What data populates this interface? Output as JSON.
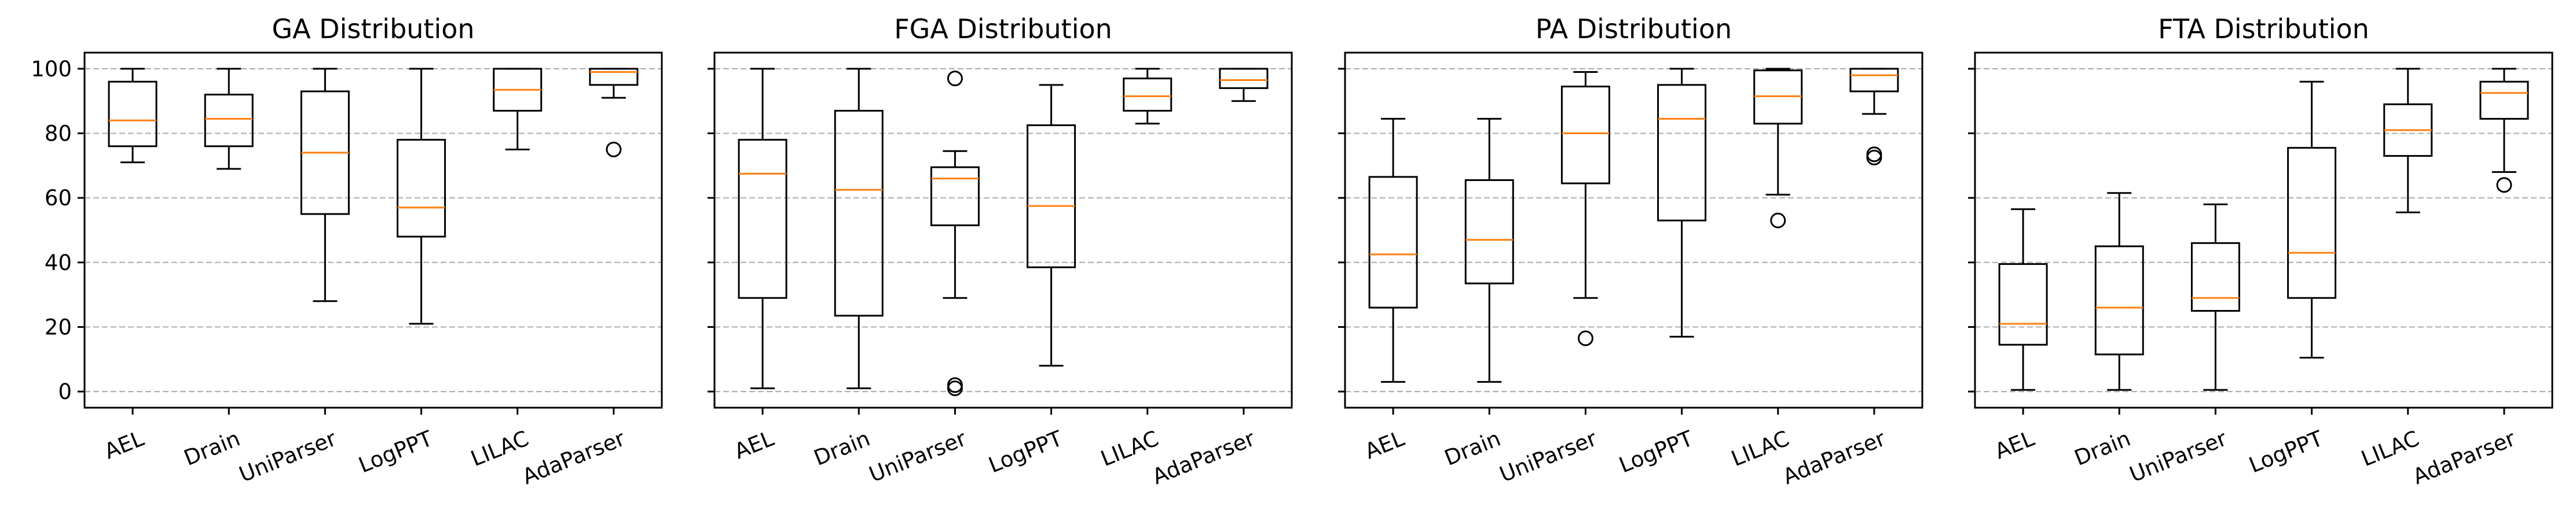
{
  "chart_data": {
    "type": "boxplot",
    "y_ticks": [
      0,
      20,
      40,
      60,
      80,
      100
    ],
    "ylim": [
      -5,
      105
    ],
    "grid": "horizontal dashed",
    "colors": {
      "median": "#ff7f0e",
      "box": "#000000",
      "grid": "#b0b0b0"
    },
    "categories": [
      "AEL",
      "Drain",
      "UniParser",
      "LogPPT",
      "LILAC",
      "AdaParser"
    ],
    "panels": [
      {
        "title": "GA Distribution",
        "boxes": [
          {
            "name": "AEL",
            "whislo": 71,
            "q1": 76,
            "med": 84,
            "q3": 96,
            "whishi": 100,
            "fliers": []
          },
          {
            "name": "Drain",
            "whislo": 69,
            "q1": 76,
            "med": 84.5,
            "q3": 92,
            "whishi": 100,
            "fliers": []
          },
          {
            "name": "UniParser",
            "whislo": 28,
            "q1": 55,
            "med": 74,
            "q3": 93,
            "whishi": 100,
            "fliers": []
          },
          {
            "name": "LogPPT",
            "whislo": 21,
            "q1": 48,
            "med": 57,
            "q3": 78,
            "whishi": 100,
            "fliers": []
          },
          {
            "name": "LILAC",
            "whislo": 75,
            "q1": 87,
            "med": 93.5,
            "q3": 100,
            "whishi": 100,
            "fliers": []
          },
          {
            "name": "AdaParser",
            "whislo": 91,
            "q1": 95,
            "med": 99,
            "q3": 100,
            "whishi": 100,
            "fliers": [
              75
            ]
          }
        ]
      },
      {
        "title": "FGA Distribution",
        "boxes": [
          {
            "name": "AEL",
            "whislo": 1,
            "q1": 29,
            "med": 67.5,
            "q3": 78,
            "whishi": 100,
            "fliers": []
          },
          {
            "name": "Drain",
            "whislo": 1,
            "q1": 23.5,
            "med": 62.5,
            "q3": 87,
            "whishi": 100,
            "fliers": []
          },
          {
            "name": "UniParser",
            "whislo": 29,
            "q1": 51.5,
            "med": 66,
            "q3": 69.5,
            "whishi": 74.5,
            "fliers": [
              97,
              2,
              1
            ]
          },
          {
            "name": "LogPPT",
            "whislo": 8,
            "q1": 38.5,
            "med": 57.5,
            "q3": 82.5,
            "whishi": 95,
            "fliers": []
          },
          {
            "name": "LILAC",
            "whislo": 83,
            "q1": 87,
            "med": 91.5,
            "q3": 97,
            "whishi": 100,
            "fliers": []
          },
          {
            "name": "AdaParser",
            "whislo": 90,
            "q1": 94,
            "med": 96.5,
            "q3": 100,
            "whishi": 100,
            "fliers": []
          }
        ]
      },
      {
        "title": "PA Distribution",
        "boxes": [
          {
            "name": "AEL",
            "whislo": 3,
            "q1": 26,
            "med": 42.5,
            "q3": 66.5,
            "whishi": 84.5,
            "fliers": []
          },
          {
            "name": "Drain",
            "whislo": 3,
            "q1": 33.5,
            "med": 47,
            "q3": 65.5,
            "whishi": 84.5,
            "fliers": []
          },
          {
            "name": "UniParser",
            "whislo": 29,
            "q1": 64.5,
            "med": 80,
            "q3": 94.5,
            "whishi": 99,
            "fliers": [
              16.5
            ]
          },
          {
            "name": "LogPPT",
            "whislo": 17,
            "q1": 53,
            "med": 84.5,
            "q3": 95,
            "whishi": 100,
            "fliers": []
          },
          {
            "name": "LILAC",
            "whislo": 61,
            "q1": 83,
            "med": 91.5,
            "q3": 99.5,
            "whishi": 100,
            "fliers": [
              53
            ]
          },
          {
            "name": "AdaParser",
            "whislo": 86,
            "q1": 93,
            "med": 98,
            "q3": 100,
            "whishi": 100,
            "fliers": [
              73.5,
              72.5
            ]
          }
        ]
      },
      {
        "title": "FTA Distribution",
        "boxes": [
          {
            "name": "AEL",
            "whislo": 0.5,
            "q1": 14.5,
            "med": 21,
            "q3": 39.5,
            "whishi": 56.5,
            "fliers": []
          },
          {
            "name": "Drain",
            "whislo": 0.5,
            "q1": 11.5,
            "med": 26,
            "q3": 45,
            "whishi": 61.5,
            "fliers": []
          },
          {
            "name": "UniParser",
            "whislo": 0.5,
            "q1": 25,
            "med": 29,
            "q3": 46,
            "whishi": 58,
            "fliers": []
          },
          {
            "name": "LogPPT",
            "whislo": 10.5,
            "q1": 29,
            "med": 43,
            "q3": 75.5,
            "whishi": 96,
            "fliers": []
          },
          {
            "name": "LILAC",
            "whislo": 55.5,
            "q1": 73,
            "med": 81,
            "q3": 89,
            "whishi": 100,
            "fliers": []
          },
          {
            "name": "AdaParser",
            "whislo": 68,
            "q1": 84.5,
            "med": 92.5,
            "q3": 96,
            "whishi": 100,
            "fliers": [
              64
            ]
          }
        ]
      }
    ]
  }
}
